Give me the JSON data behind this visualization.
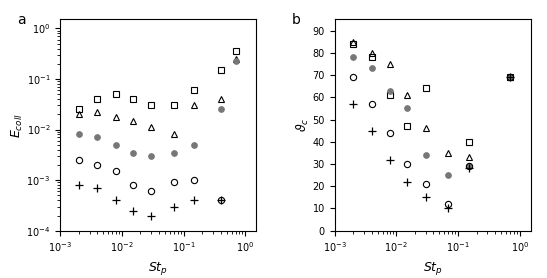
{
  "panel_a": {
    "xlim": [
      0.001,
      1.5
    ],
    "ylim": [
      0.0001,
      1.5
    ],
    "series": {
      "square": {
        "x": [
          0.002,
          0.004,
          0.008,
          0.015,
          0.03,
          0.07,
          0.15,
          0.4,
          0.7
        ],
        "y": [
          0.025,
          0.04,
          0.05,
          0.04,
          0.03,
          0.03,
          0.06,
          0.15,
          0.35
        ],
        "marker": "s",
        "mfc": "none",
        "mec": "black",
        "ms": 4.5,
        "mew": 0.8
      },
      "triangle": {
        "x": [
          0.002,
          0.004,
          0.008,
          0.015,
          0.03,
          0.07,
          0.15,
          0.4,
          0.7
        ],
        "y": [
          0.02,
          0.022,
          0.018,
          0.015,
          0.011,
          0.008,
          0.03,
          0.04,
          0.25
        ],
        "marker": "^",
        "mfc": "none",
        "mec": "black",
        "ms": 4.5,
        "mew": 0.8
      },
      "bullet": {
        "x": [
          0.002,
          0.004,
          0.008,
          0.015,
          0.03,
          0.07,
          0.15,
          0.4,
          0.7
        ],
        "y": [
          0.008,
          0.007,
          0.005,
          0.0035,
          0.003,
          0.0035,
          0.005,
          0.025,
          0.23
        ],
        "marker": "o",
        "mfc": "#777777",
        "mec": "#777777",
        "ms": 4.0,
        "mew": 0.8
      },
      "circle": {
        "x": [
          0.002,
          0.004,
          0.008,
          0.015,
          0.03,
          0.07,
          0.15,
          0.4
        ],
        "y": [
          0.0025,
          0.002,
          0.0015,
          0.0008,
          0.0006,
          0.0009,
          0.001,
          0.0004
        ],
        "marker": "o",
        "mfc": "none",
        "mec": "black",
        "ms": 4.5,
        "mew": 0.8
      },
      "plus": {
        "x": [
          0.002,
          0.004,
          0.008,
          0.015,
          0.03,
          0.07,
          0.15,
          0.4
        ],
        "y": [
          0.0008,
          0.0007,
          0.0004,
          0.00025,
          0.0002,
          0.0003,
          0.0004,
          0.0004
        ],
        "marker": "+",
        "mfc": "black",
        "mec": "black",
        "ms": 5.5,
        "mew": 0.9
      }
    }
  },
  "panel_b": {
    "xlim": [
      0.001,
      1.5
    ],
    "ylim": [
      0,
      95
    ],
    "yticks": [
      0,
      10,
      20,
      30,
      40,
      50,
      60,
      70,
      80,
      90
    ],
    "series": {
      "square": {
        "x": [
          0.002,
          0.004,
          0.008,
          0.015,
          0.03,
          0.15,
          0.7
        ],
        "y": [
          84,
          78,
          61,
          47,
          64,
          40,
          69
        ],
        "marker": "s",
        "mfc": "none",
        "mec": "black",
        "ms": 4.5,
        "mew": 0.8
      },
      "triangle": {
        "x": [
          0.002,
          0.004,
          0.008,
          0.015,
          0.03,
          0.07,
          0.15,
          0.7
        ],
        "y": [
          85,
          80,
          75,
          61,
          46,
          35,
          33,
          69
        ],
        "marker": "^",
        "mfc": "none",
        "mec": "black",
        "ms": 4.5,
        "mew": 0.8
      },
      "bullet": {
        "x": [
          0.002,
          0.004,
          0.008,
          0.015,
          0.03,
          0.07,
          0.15,
          0.7
        ],
        "y": [
          78,
          73,
          63,
          55,
          34,
          25,
          29,
          69
        ],
        "marker": "o",
        "mfc": "#777777",
        "mec": "#777777",
        "ms": 4.0,
        "mew": 0.8
      },
      "circle": {
        "x": [
          0.002,
          0.004,
          0.008,
          0.015,
          0.03,
          0.07,
          0.15,
          0.7
        ],
        "y": [
          69,
          57,
          44,
          30,
          21,
          12,
          29,
          69
        ],
        "marker": "o",
        "mfc": "none",
        "mec": "black",
        "ms": 4.5,
        "mew": 0.8
      },
      "plus": {
        "x": [
          0.002,
          0.004,
          0.008,
          0.015,
          0.03,
          0.07,
          0.15,
          0.7
        ],
        "y": [
          57,
          45,
          32,
          22,
          15,
          10,
          28,
          69
        ],
        "marker": "+",
        "mfc": "black",
        "mec": "black",
        "ms": 5.5,
        "mew": 0.9
      }
    }
  },
  "xlabel": "$St_p$",
  "ylabel_a": "$E_{coll}$",
  "ylabel_b": "$\\vartheta_c$",
  "label_a": "a",
  "label_b": "b",
  "tick_fontsize": 7,
  "label_fontsize": 9,
  "figsize": [
    5.47,
    2.78
  ],
  "dpi": 100
}
